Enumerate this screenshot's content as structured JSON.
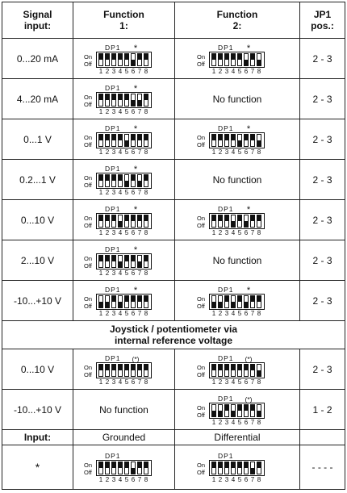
{
  "header": {
    "signal": [
      "Signal",
      "input:"
    ],
    "function1": [
      "Function",
      "1:"
    ],
    "function2": [
      "Function",
      "2:"
    ],
    "jp1": [
      "JP1",
      "pos.:"
    ]
  },
  "dip_labels": {
    "title": "DP1",
    "on": "On",
    "off": "Off",
    "numbers": [
      "1",
      "2",
      "3",
      "4",
      "5",
      "6",
      "7",
      "8"
    ]
  },
  "no_function": "No function",
  "rows": [
    {
      "signal": "0...20 mA",
      "f1": {
        "on": [
          false,
          false,
          false,
          false,
          false,
          true,
          false,
          false
        ],
        "mark": "*"
      },
      "f2": {
        "on": [
          false,
          false,
          false,
          false,
          false,
          true,
          false,
          true
        ],
        "mark": "*"
      },
      "jp1": "2 - 3"
    },
    {
      "signal": "4...20 mA",
      "f1": {
        "on": [
          false,
          false,
          false,
          false,
          false,
          true,
          true,
          false
        ],
        "mark": "*"
      },
      "f2": null,
      "jp1": "2 - 3"
    },
    {
      "signal": "0...1 V",
      "f1": {
        "on": [
          false,
          false,
          false,
          false,
          true,
          false,
          false,
          false
        ],
        "mark": "*"
      },
      "f2": {
        "on": [
          false,
          false,
          false,
          false,
          true,
          false,
          false,
          true
        ],
        "mark": "*"
      },
      "jp1": "2 - 3"
    },
    {
      "signal": "0.2...1 V",
      "f1": {
        "on": [
          false,
          false,
          false,
          false,
          true,
          false,
          true,
          false
        ],
        "mark": "*"
      },
      "f2": null,
      "jp1": "2 - 3"
    },
    {
      "signal": "0...10 V",
      "f1": {
        "on": [
          false,
          false,
          false,
          true,
          false,
          false,
          false,
          false
        ],
        "mark": "*"
      },
      "f2": {
        "on": [
          false,
          false,
          false,
          true,
          false,
          true,
          false,
          false
        ],
        "mark": "*"
      },
      "jp1": "2 - 3"
    },
    {
      "signal": "2...10 V",
      "f1": {
        "on": [
          false,
          false,
          false,
          true,
          false,
          false,
          true,
          false
        ],
        "mark": "*"
      },
      "f2": null,
      "jp1": "2 - 3"
    },
    {
      "signal": "-10...+10 V",
      "f1": {
        "on": [
          true,
          true,
          false,
          true,
          false,
          false,
          false,
          false
        ],
        "mark": "*"
      },
      "f2": {
        "on": [
          true,
          true,
          false,
          true,
          false,
          true,
          false,
          false
        ],
        "mark": "*"
      },
      "jp1": "2 - 3"
    }
  ],
  "joystick_heading": [
    "Joystick / potentiometer via",
    "internal reference voltage"
  ],
  "joystick_rows": [
    {
      "signal": "0...10 V",
      "f1": {
        "on": [
          false,
          false,
          false,
          false,
          false,
          false,
          false,
          false
        ],
        "mark": "(*)"
      },
      "f2": {
        "on": [
          false,
          false,
          false,
          false,
          false,
          false,
          false,
          true
        ],
        "mark": "(*)"
      },
      "jp1": "2 - 3"
    },
    {
      "signal": "-10...+10 V",
      "f1": null,
      "f2": {
        "on": [
          true,
          true,
          false,
          true,
          false,
          false,
          false,
          true
        ],
        "mark": "(*)"
      },
      "jp1": "1 - 2"
    }
  ],
  "input_row": {
    "label": "Input:",
    "grounded": "Grounded",
    "differential": "Differential"
  },
  "star_row": {
    "signal": "*",
    "f1": {
      "on": [
        false,
        false,
        false,
        false,
        false,
        true,
        false,
        false
      ],
      "mark": ""
    },
    "f2": {
      "on": [
        false,
        false,
        false,
        false,
        false,
        false,
        true,
        false
      ],
      "mark": ""
    },
    "jp1": "- - - -"
  }
}
